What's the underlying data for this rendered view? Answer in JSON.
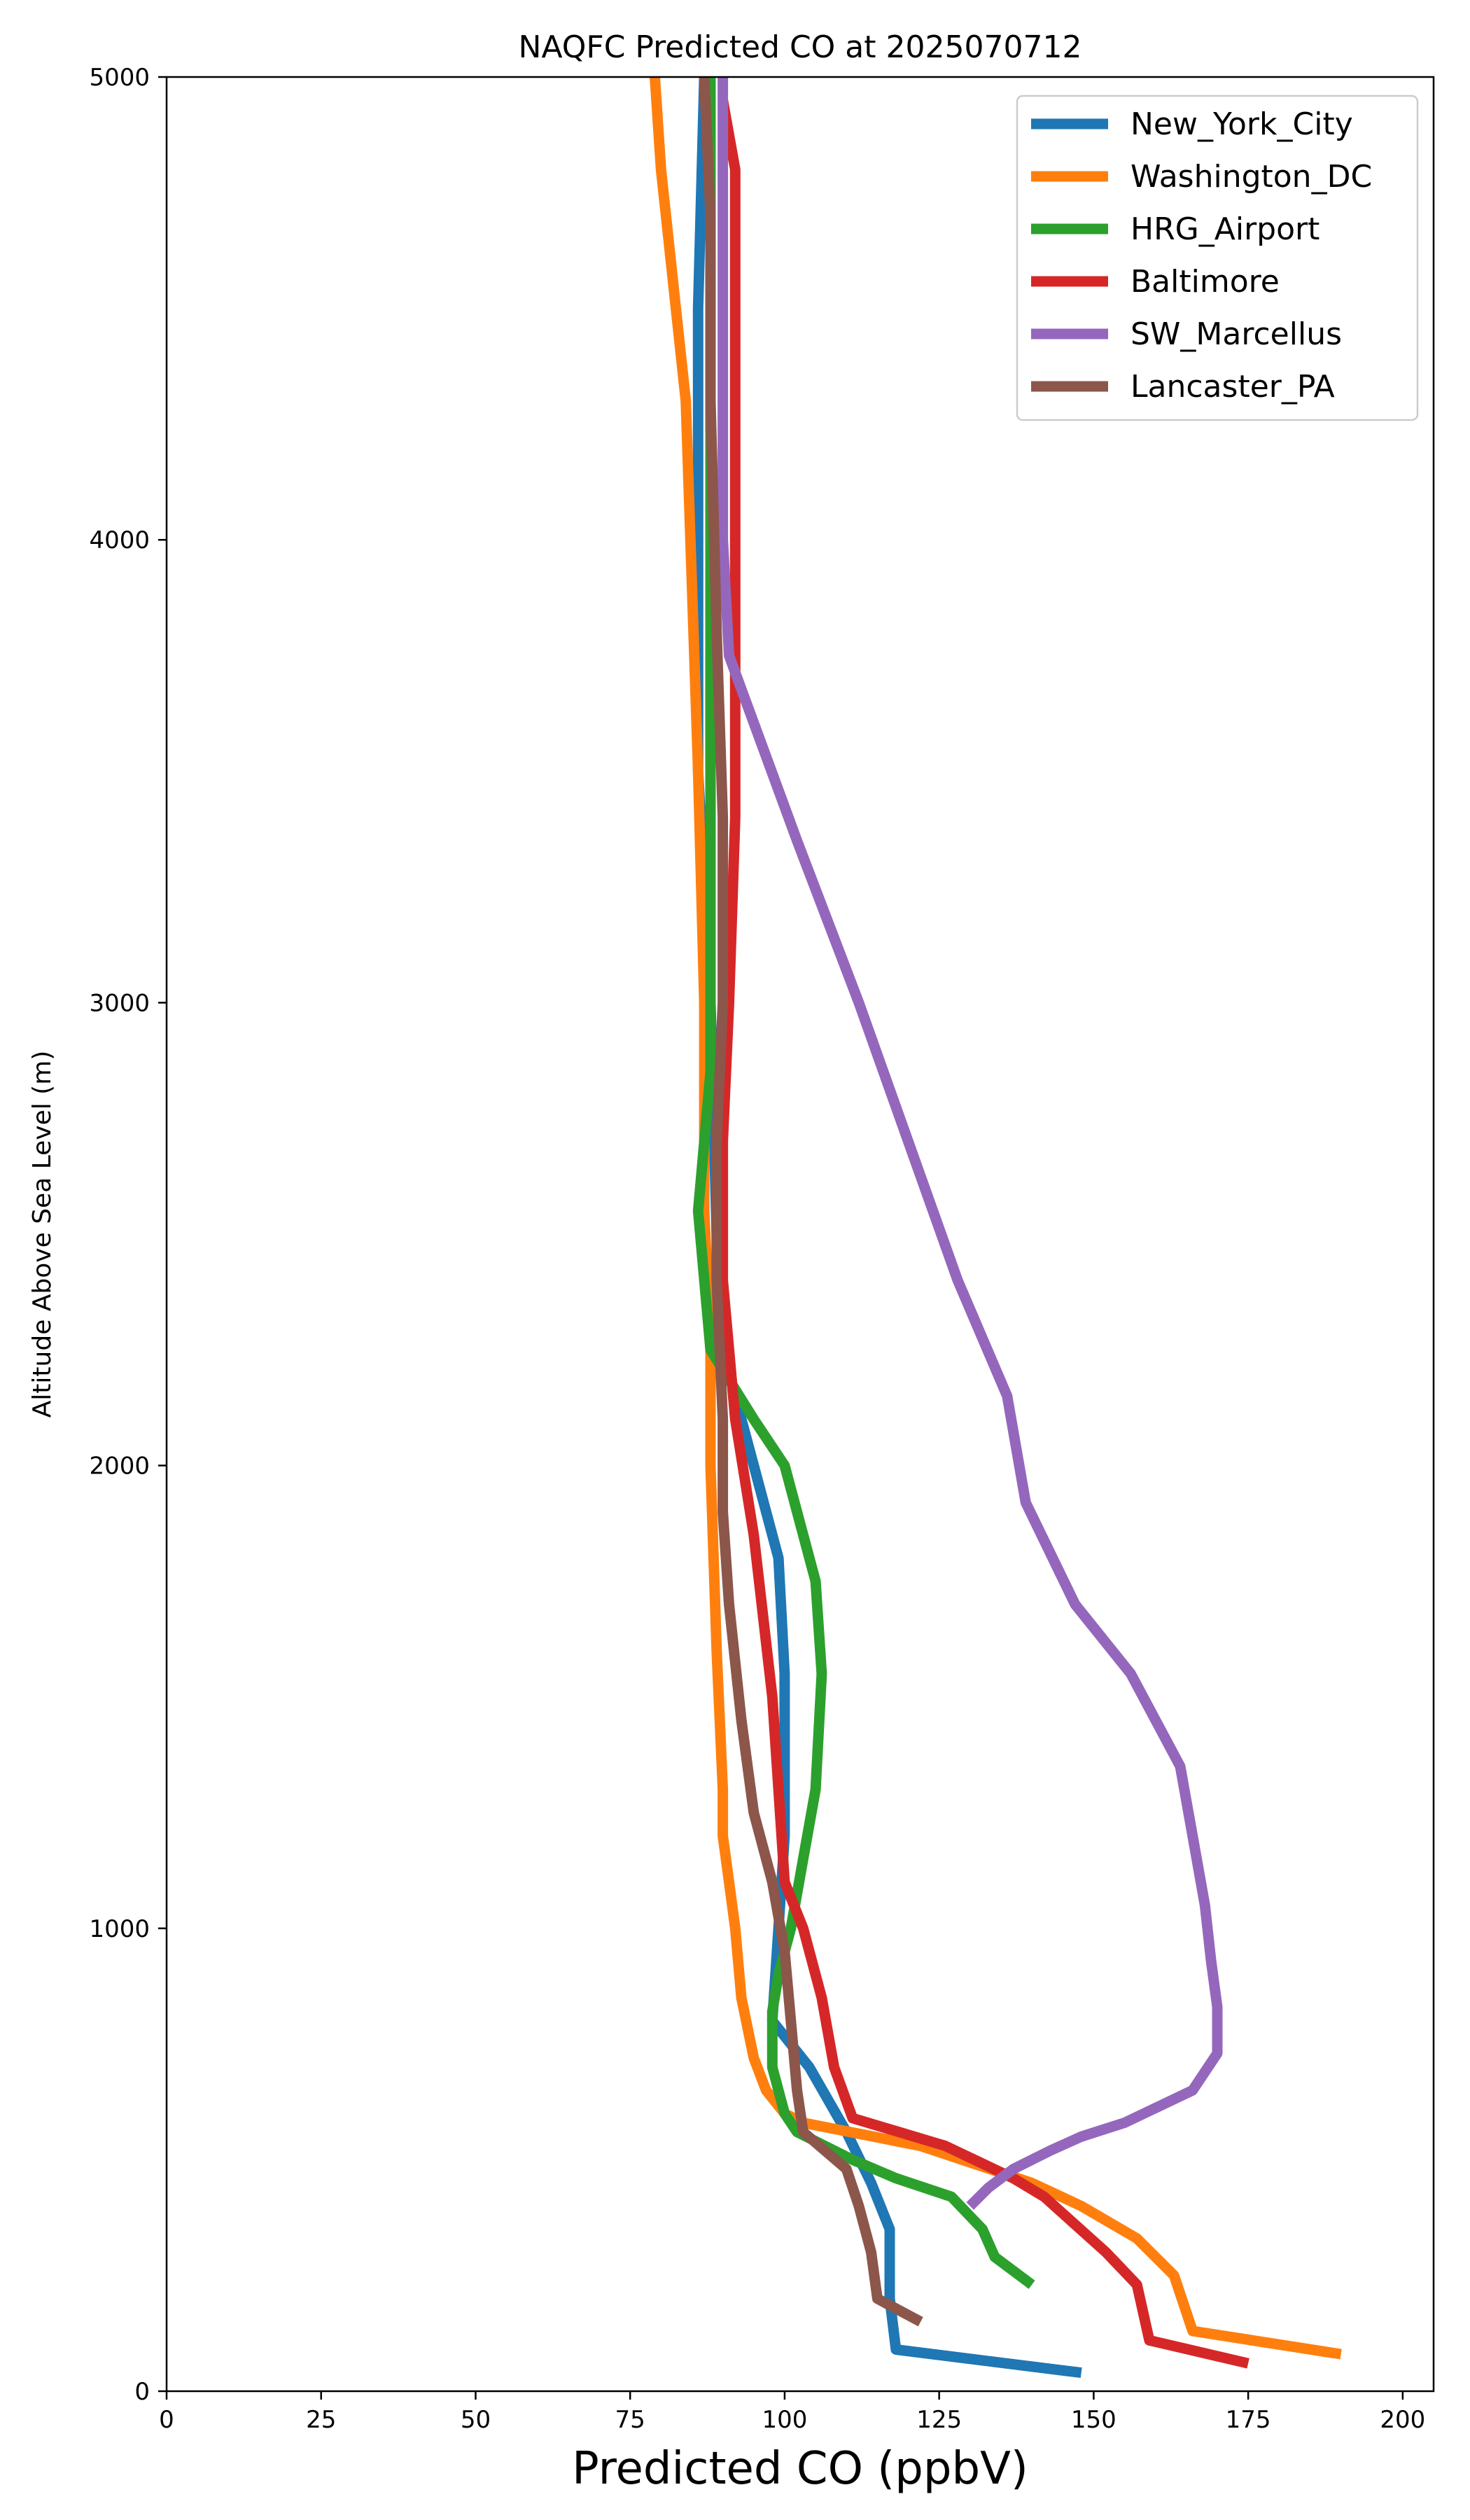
{
  "chart_data": {
    "type": "line",
    "title": "NAQFC Predicted CO at 2025070712",
    "xlabel": "Predicted CO (ppbV)",
    "ylabel": "Altitude Above Sea Level (m)",
    "xlim": [
      0,
      205
    ],
    "ylim": [
      0,
      5000
    ],
    "xticks": [
      0,
      25,
      50,
      75,
      100,
      125,
      150,
      175,
      200
    ],
    "yticks": [
      0,
      1000,
      2000,
      3000,
      4000,
      5000
    ],
    "grid": false,
    "legend_position": "top-right",
    "series": [
      {
        "name": "New_York_City",
        "color": "#1f77b4",
        "points": [
          [
            148,
            40
          ],
          [
            118,
            90
          ],
          [
            117,
            200
          ],
          [
            117,
            350
          ],
          [
            114,
            450
          ],
          [
            110,
            560
          ],
          [
            104,
            700
          ],
          [
            98,
            800
          ],
          [
            99,
            1000
          ],
          [
            100,
            1200
          ],
          [
            100,
            1550
          ],
          [
            99,
            1800
          ],
          [
            95,
            2000
          ],
          [
            90,
            2250
          ],
          [
            89,
            2500
          ],
          [
            88,
            3000
          ],
          [
            86,
            3500
          ],
          [
            86,
            4000
          ],
          [
            86,
            4500
          ],
          [
            87,
            5000
          ]
        ]
      },
      {
        "name": "Washington_DC",
        "color": "#ff7f0e",
        "points": [
          [
            190,
            80
          ],
          [
            166,
            130
          ],
          [
            163,
            250
          ],
          [
            157,
            330
          ],
          [
            148,
            400
          ],
          [
            140,
            450
          ],
          [
            122,
            530
          ],
          [
            103,
            580
          ],
          [
            100,
            600
          ],
          [
            97,
            650
          ],
          [
            95,
            720
          ],
          [
            93,
            850
          ],
          [
            92,
            1000
          ],
          [
            91,
            1100
          ],
          [
            90,
            1200
          ],
          [
            90,
            1300
          ],
          [
            89,
            1600
          ],
          [
            88,
            2000
          ],
          [
            88,
            2250
          ],
          [
            87,
            2550
          ],
          [
            87,
            3000
          ],
          [
            86,
            3500
          ],
          [
            85,
            3900
          ],
          [
            84,
            4300
          ],
          [
            80,
            4800
          ],
          [
            79,
            5000
          ]
        ]
      },
      {
        "name": "HRG_Airport",
        "color": "#2ca02c",
        "points": [
          [
            140,
            230
          ],
          [
            134,
            290
          ],
          [
            132,
            350
          ],
          [
            127,
            420
          ],
          [
            118,
            460
          ],
          [
            111,
            500
          ],
          [
            102,
            560
          ],
          [
            100,
            600
          ],
          [
            98,
            700
          ],
          [
            98,
            820
          ],
          [
            99,
            900
          ],
          [
            101,
            1000
          ],
          [
            103,
            1150
          ],
          [
            105,
            1300
          ],
          [
            106,
            1550
          ],
          [
            105,
            1750
          ],
          [
            100,
            2000
          ],
          [
            95,
            2100
          ],
          [
            88,
            2250
          ],
          [
            86,
            2550
          ],
          [
            88,
            2850
          ],
          [
            88,
            3250
          ],
          [
            88,
            3750
          ],
          [
            88,
            4250
          ],
          [
            88,
            4750
          ],
          [
            88,
            5000
          ]
        ]
      },
      {
        "name": "Baltimore",
        "color": "#d62728",
        "points": [
          [
            175,
            60
          ],
          [
            159,
            110
          ],
          [
            157,
            230
          ],
          [
            152,
            300
          ],
          [
            142,
            420
          ],
          [
            137,
            460
          ],
          [
            126,
            530
          ],
          [
            111,
            590
          ],
          [
            108,
            700
          ],
          [
            106,
            850
          ],
          [
            103,
            1000
          ],
          [
            100,
            1100
          ],
          [
            98,
            1500
          ],
          [
            95,
            1850
          ],
          [
            92,
            2100
          ],
          [
            91,
            2250
          ],
          [
            90,
            2400
          ],
          [
            90,
            2700
          ],
          [
            91,
            3000
          ],
          [
            92,
            3400
          ],
          [
            92,
            3700
          ],
          [
            92,
            4300
          ],
          [
            92,
            4800
          ],
          [
            90,
            4950
          ]
        ]
      },
      {
        "name": "SW_Marcellus",
        "color": "#9467bd",
        "points": [
          [
            130,
            400
          ],
          [
            133,
            440
          ],
          [
            137,
            480
          ],
          [
            143,
            520
          ],
          [
            148,
            550
          ],
          [
            155,
            580
          ],
          [
            166,
            650
          ],
          [
            170,
            730
          ],
          [
            170,
            830
          ],
          [
            169,
            930
          ],
          [
            168,
            1050
          ],
          [
            166,
            1200
          ],
          [
            164,
            1350
          ],
          [
            156,
            1550
          ],
          [
            147,
            1700
          ],
          [
            139,
            1920
          ],
          [
            136,
            2150
          ],
          [
            128,
            2400
          ],
          [
            120,
            2700
          ],
          [
            112,
            3000
          ],
          [
            102,
            3350
          ],
          [
            91,
            3750
          ],
          [
            90,
            4000
          ],
          [
            90,
            4500
          ],
          [
            90,
            5000
          ]
        ]
      },
      {
        "name": "Lancaster_PA",
        "color": "#8c564b",
        "points": [
          [
            122,
            150
          ],
          [
            115,
            200
          ],
          [
            114,
            300
          ],
          [
            112,
            400
          ],
          [
            110,
            480
          ],
          [
            103,
            560
          ],
          [
            102,
            650
          ],
          [
            101,
            800
          ],
          [
            100,
            950
          ],
          [
            98,
            1100
          ],
          [
            95,
            1250
          ],
          [
            93,
            1450
          ],
          [
            91,
            1700
          ],
          [
            90,
            1900
          ],
          [
            90,
            2100
          ],
          [
            89,
            2400
          ],
          [
            89,
            2700
          ],
          [
            90,
            3000
          ],
          [
            90,
            3400
          ],
          [
            89,
            3800
          ],
          [
            88,
            4300
          ],
          [
            88,
            4700
          ],
          [
            87,
            5000
          ]
        ]
      }
    ]
  }
}
